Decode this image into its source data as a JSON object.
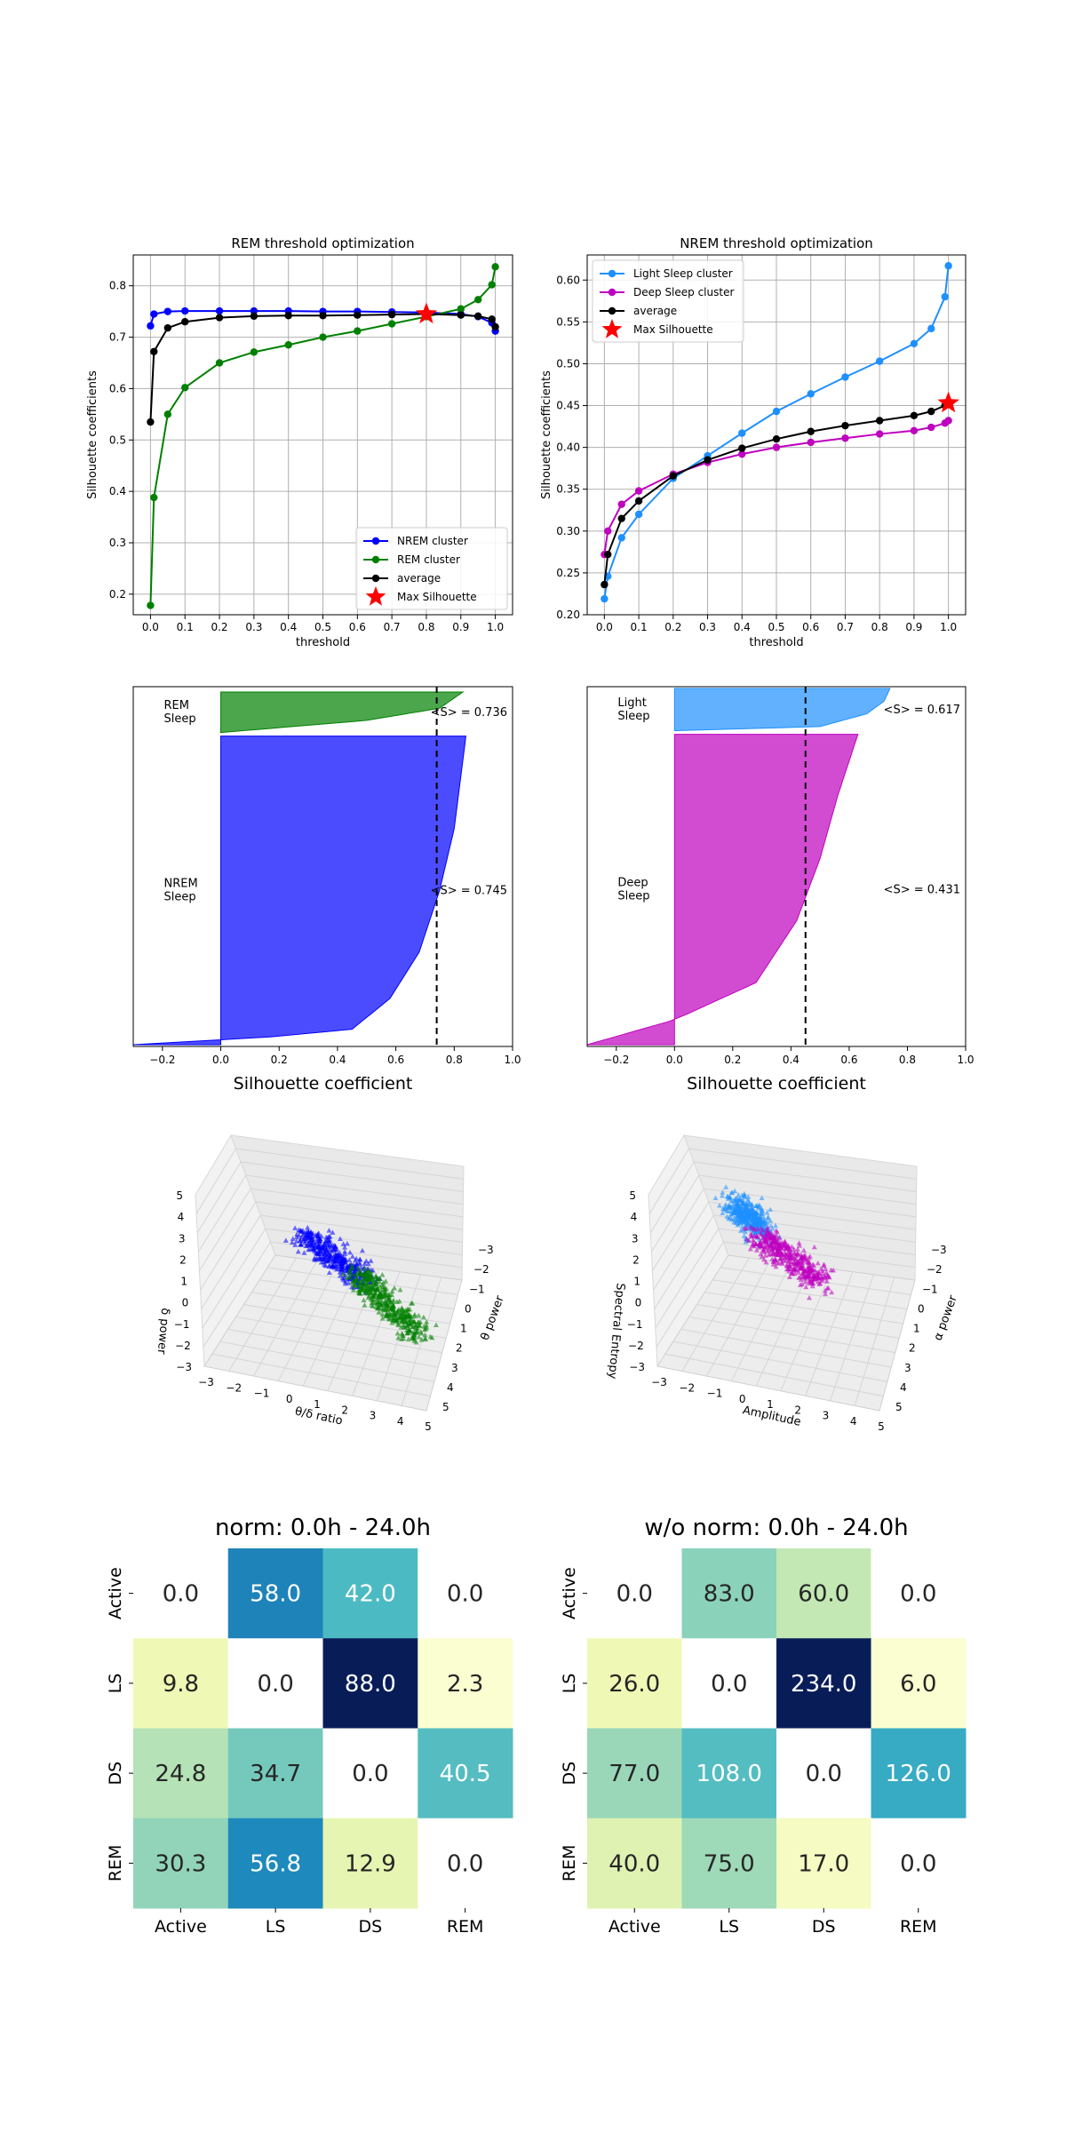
{
  "chart_data": [
    {
      "type": "line",
      "title": "REM threshold optimization",
      "xlabel": "threshold",
      "ylabel": "Silhouette coefficients",
      "x": [
        0.0,
        0.01,
        0.05,
        0.1,
        0.2,
        0.3,
        0.4,
        0.5,
        0.6,
        0.7,
        0.8,
        0.9,
        0.95,
        0.99,
        1.0
      ],
      "xticks": [
        "0.0",
        "0.1",
        "0.2",
        "0.3",
        "0.4",
        "0.5",
        "0.6",
        "0.7",
        "0.8",
        "0.9",
        "1.0"
      ],
      "xtick_values": [
        0.0,
        0.1,
        0.2,
        0.3,
        0.4,
        0.5,
        0.6,
        0.7,
        0.8,
        0.9,
        1.0
      ],
      "ylim": [
        0.16,
        0.86
      ],
      "yticks": [
        0.2,
        0.3,
        0.4,
        0.5,
        0.6,
        0.7,
        0.8
      ],
      "grid": true,
      "legend_position": "lower-right",
      "series": [
        {
          "name": "NREM cluster",
          "color": "#0000ff",
          "values": [
            0.722,
            0.745,
            0.75,
            0.751,
            0.751,
            0.751,
            0.751,
            0.75,
            0.75,
            0.749,
            0.748,
            0.745,
            0.74,
            0.728,
            0.712
          ]
        },
        {
          "name": "REM cluster",
          "color": "#008000",
          "values": [
            0.178,
            0.388,
            0.55,
            0.602,
            0.65,
            0.671,
            0.685,
            0.7,
            0.712,
            0.726,
            0.74,
            0.755,
            0.773,
            0.802,
            0.837
          ]
        },
        {
          "name": "average",
          "color": "#000000",
          "values": [
            0.535,
            0.672,
            0.718,
            0.73,
            0.738,
            0.741,
            0.742,
            0.742,
            0.743,
            0.744,
            0.745,
            0.743,
            0.741,
            0.735,
            0.72
          ]
        }
      ],
      "max_point": {
        "name": "Max Silhouette",
        "x": 0.8,
        "y": 0.745,
        "color": "#ff0000"
      }
    },
    {
      "type": "line",
      "title": "NREM threshold optimization",
      "xlabel": "threshold",
      "ylabel": "Silhouette coefficients",
      "x": [
        0.0,
        0.01,
        0.05,
        0.1,
        0.2,
        0.3,
        0.4,
        0.5,
        0.6,
        0.7,
        0.8,
        0.9,
        0.95,
        0.99,
        1.0
      ],
      "xticks": [
        "0.0",
        "0.1",
        "0.2",
        "0.3",
        "0.4",
        "0.5",
        "0.6",
        "0.7",
        "0.8",
        "0.9",
        "1.0"
      ],
      "xtick_values": [
        0.0,
        0.1,
        0.2,
        0.3,
        0.4,
        0.5,
        0.6,
        0.7,
        0.8,
        0.9,
        1.0
      ],
      "ylim": [
        0.2,
        0.63
      ],
      "yticks": [
        "0.20",
        "0.25",
        "0.30",
        "0.35",
        "0.40",
        "0.45",
        "0.50",
        "0.55",
        "0.60"
      ],
      "ytick_values": [
        0.2,
        0.25,
        0.3,
        0.35,
        0.4,
        0.45,
        0.5,
        0.55,
        0.6
      ],
      "grid": true,
      "legend_position": "upper-left",
      "series": [
        {
          "name": "Light Sleep cluster",
          "color": "#1e90ff",
          "values": [
            0.219,
            0.246,
            0.292,
            0.32,
            0.363,
            0.39,
            0.417,
            0.443,
            0.464,
            0.484,
            0.503,
            0.524,
            0.542,
            0.58,
            0.617
          ]
        },
        {
          "name": "Deep Sleep cluster",
          "color": "#bf00bf",
          "values": [
            0.272,
            0.3,
            0.332,
            0.348,
            0.368,
            0.382,
            0.392,
            0.4,
            0.406,
            0.411,
            0.416,
            0.42,
            0.424,
            0.429,
            0.432
          ]
        },
        {
          "name": "average",
          "color": "#000000",
          "values": [
            0.236,
            0.272,
            0.315,
            0.336,
            0.366,
            0.385,
            0.399,
            0.41,
            0.419,
            0.426,
            0.432,
            0.438,
            0.443,
            0.45,
            0.453
          ]
        }
      ],
      "max_point": {
        "name": "Max Silhouette",
        "x": 1.0,
        "y": 0.453,
        "color": "#ff0000"
      }
    },
    {
      "type": "area",
      "xlabel": "Silhouette coefficient",
      "xlim": [
        -0.3,
        1.0
      ],
      "xticks": [
        "−0.2",
        "0.0",
        "0.2",
        "0.4",
        "0.6",
        "0.8",
        "1.0"
      ],
      "xtick_values": [
        -0.2,
        0.0,
        0.2,
        0.4,
        0.6,
        0.8,
        1.0
      ],
      "mean_line": 0.74,
      "clusters": [
        {
          "label": "REM\nSleep",
          "mean_text": "<S> = 0.736",
          "color": "#008000",
          "share": 0.115,
          "profile": [
            [
              0.0,
              0.0
            ],
            [
              0.3,
              0.5
            ],
            [
              0.6,
              0.75
            ],
            [
              0.85,
              0.8
            ],
            [
              1.0,
              0.83
            ]
          ]
        },
        {
          "label": "NREM\nSleep",
          "mean_text": "<S> = 0.745",
          "color": "#0000ff",
          "share": 0.875,
          "profile": [
            [
              0.0,
              -0.3
            ],
            [
              0.01,
              0.0
            ],
            [
              0.05,
              0.45
            ],
            [
              0.15,
              0.58
            ],
            [
              0.3,
              0.68
            ],
            [
              0.5,
              0.75
            ],
            [
              0.7,
              0.8
            ],
            [
              1.0,
              0.84
            ]
          ]
        }
      ]
    },
    {
      "type": "area",
      "xlabel": "Silhouette coefficient",
      "xlim": [
        -0.3,
        1.0
      ],
      "xticks": [
        "−0.2",
        "0.0",
        "0.2",
        "0.4",
        "0.6",
        "0.8",
        "1.0"
      ],
      "xtick_values": [
        -0.2,
        0.0,
        0.2,
        0.4,
        0.6,
        0.8,
        1.0
      ],
      "mean_line": 0.45,
      "clusters": [
        {
          "label": "Light\nSleep",
          "mean_text": "<S> = 0.617",
          "color": "#1e90ff",
          "share": 0.12,
          "profile": [
            [
              0.0,
              0.0
            ],
            [
              0.1,
              0.5
            ],
            [
              0.4,
              0.66
            ],
            [
              0.7,
              0.72
            ],
            [
              1.0,
              0.74
            ]
          ]
        },
        {
          "label": "Deep\nSleep",
          "mean_text": "<S> = 0.431",
          "color": "#bf00bf",
          "share": 0.88,
          "profile": [
            [
              0.0,
              -0.3
            ],
            [
              0.08,
              0.0
            ],
            [
              0.2,
              0.28
            ],
            [
              0.4,
              0.42
            ],
            [
              0.6,
              0.5
            ],
            [
              0.8,
              0.56
            ],
            [
              1.0,
              0.63
            ]
          ]
        }
      ]
    },
    {
      "type": "scatter",
      "xlabel": "θ/δ ratio",
      "ylabel": "θ power",
      "zlabel": "δ power",
      "xticks": [
        "−3",
        "−2",
        "−1",
        "0",
        "1",
        "2",
        "3",
        "4",
        "5"
      ],
      "yticks": [
        "−3",
        "−2",
        "−1",
        "0",
        "1",
        "2",
        "3",
        "4",
        "5"
      ],
      "zticks": [
        "−3",
        "−2",
        "−1",
        "0",
        "1",
        "2",
        "3",
        "4",
        "5"
      ],
      "series": [
        {
          "color": "#0000ff",
          "from": [
            -1.0,
            1.4
          ],
          "to": [
            0.9,
            0.1
          ]
        },
        {
          "color": "#008000",
          "from": [
            0.6,
            0.3
          ],
          "to": [
            2.5,
            -1.6
          ]
        }
      ]
    },
    {
      "type": "scatter",
      "xlabel": "Amplitude",
      "ylabel": "α power",
      "zlabel": "Spectral Entropy",
      "xticks": [
        "−3",
        "−2",
        "−1",
        "0",
        "1",
        "2",
        "3",
        "4",
        "5"
      ],
      "yticks": [
        "−3",
        "−2",
        "−1",
        "0",
        "1",
        "2",
        "3",
        "4",
        "5"
      ],
      "zticks": [
        "−3",
        "−2",
        "−1",
        "0",
        "1",
        "2",
        "3",
        "4",
        "5"
      ],
      "series": [
        {
          "color": "#1e90ff",
          "from": [
            -1.6,
            2.4
          ],
          "to": [
            -0.8,
            1.5
          ]
        },
        {
          "color": "#bf00bf",
          "from": [
            -0.9,
            1.4
          ],
          "to": [
            1.0,
            0.0
          ]
        }
      ]
    },
    {
      "type": "heatmap",
      "title": "norm: 0.0h - 24.0h",
      "rows": [
        "Active",
        "LS",
        "DS",
        "REM"
      ],
      "cols": [
        "Active",
        "LS",
        "DS",
        "REM"
      ],
      "values": [
        [
          "0.0",
          "58.0",
          "42.0",
          "0.0"
        ],
        [
          "9.8",
          "0.0",
          "88.0",
          "2.3"
        ],
        [
          "24.8",
          "34.7",
          "0.0",
          "40.5"
        ],
        [
          "30.3",
          "56.8",
          "12.9",
          "0.0"
        ]
      ],
      "vmax": 88.0
    },
    {
      "type": "heatmap",
      "title": "w/o norm: 0.0h - 24.0h",
      "rows": [
        "Active",
        "LS",
        "DS",
        "REM"
      ],
      "cols": [
        "Active",
        "LS",
        "DS",
        "REM"
      ],
      "values": [
        [
          "0.0",
          "83.0",
          "60.0",
          "0.0"
        ],
        [
          "26.0",
          "0.0",
          "234.0",
          "6.0"
        ],
        [
          "77.0",
          "108.0",
          "0.0",
          "126.0"
        ],
        [
          "40.0",
          "75.0",
          "17.0",
          "0.0"
        ]
      ],
      "vmax": 234.0
    }
  ]
}
